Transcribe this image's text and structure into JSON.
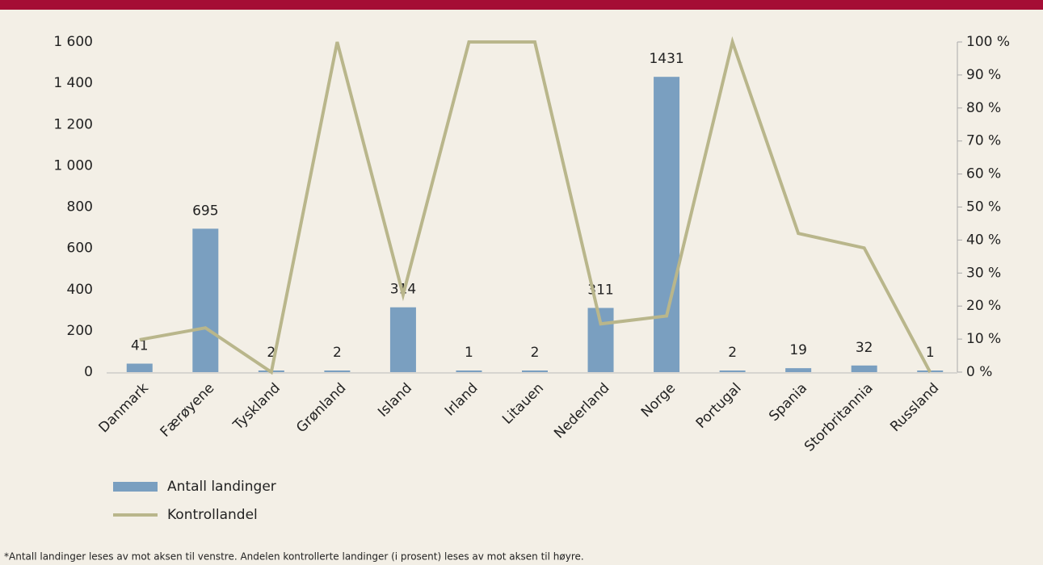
{
  "chart_data": {
    "type": "bar-line",
    "categories": [
      "Danmark",
      "Færøyene",
      "Tyskland",
      "Grønland",
      "Island",
      "Irland",
      "Litauen",
      "Nederland",
      "Norge",
      "Portugal",
      "Spania",
      "Storbritannia",
      "Russland"
    ],
    "series": [
      {
        "name": "Antall landinger",
        "type": "bar",
        "color": "#7a9fc0",
        "values": [
          41,
          695,
          2,
          2,
          314,
          1,
          2,
          311,
          1431,
          2,
          19,
          32,
          1
        ]
      },
      {
        "name": "Kontrollandel",
        "type": "line",
        "axis": "y2",
        "color": "#b9b68b",
        "values": [
          9.8,
          13.4,
          0,
          100,
          23.4,
          100,
          100,
          14.6,
          17,
          100,
          42,
          37.6,
          0
        ]
      }
    ],
    "ylim": [
      0,
      1600
    ],
    "yticks": [
      0,
      200,
      400,
      600,
      800,
      {
        "value": 1000,
        "label": "1 000"
      },
      {
        "value": 1200,
        "label": "1 200"
      },
      {
        "value": 1400,
        "label": "1 400"
      },
      {
        "value": 1600,
        "label": "1 600"
      }
    ],
    "y2lim": [
      0,
      100
    ],
    "y2ticks": [
      {
        "value": 0,
        "label": "0 %"
      },
      {
        "value": 10,
        "label": "10 %"
      },
      {
        "value": 20,
        "label": "20 %"
      },
      {
        "value": 30,
        "label": "30 %"
      },
      {
        "value": 40,
        "label": "40 %"
      },
      {
        "value": 50,
        "label": "50 %"
      },
      {
        "value": 60,
        "label": "60 %"
      },
      {
        "value": 70,
        "label": "70 %"
      },
      {
        "value": 80,
        "label": "80 %"
      },
      {
        "value": 90,
        "label": "90 %"
      },
      {
        "value": 100,
        "label": "100 %"
      }
    ],
    "footnote": "*Antall landinger leses av mot aksen til venstre. Andelen kontrollerte landinger (i prosent) leses av mot aksen til høyre."
  }
}
